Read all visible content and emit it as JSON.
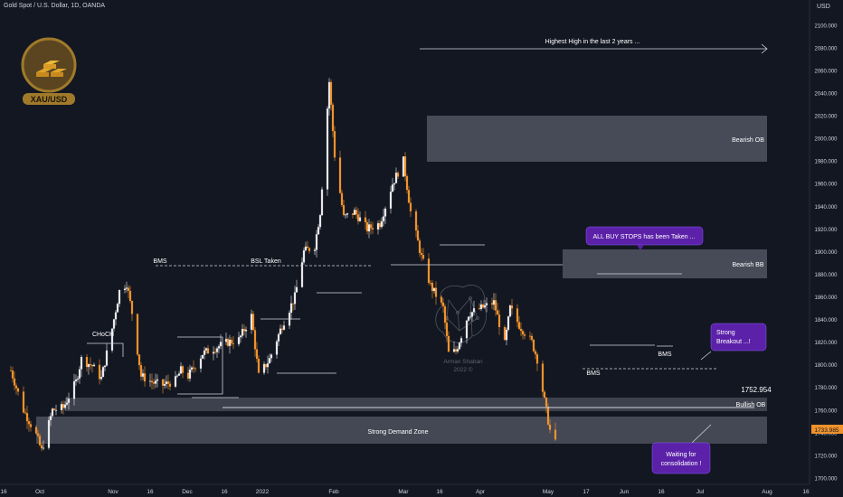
{
  "header": {
    "symbol_title": "Gold Spot / U.S. Dollar, 1D, OANDA",
    "currency": "USD"
  },
  "logo": {
    "label": "XAU/USD",
    "colors": {
      "ring": "#a07a2a",
      "fill": "#5a4520",
      "bars": "#e0a52a"
    }
  },
  "watermark": {
    "line1": "Arman Shaban",
    "line2": "2022 ©"
  },
  "colors": {
    "background": "#131722",
    "bull_candle": "#e8e8ec",
    "bear_candle": "#f0922b",
    "zone": "#5a5e6b",
    "callout": "#5b21a8",
    "price_tag": "#f0922b",
    "text": "#d1d4dc",
    "annotation_text": "#ffffff"
  },
  "chart_data": {
    "type": "candlestick",
    "title": "Gold Spot / U.S. Dollar, 1D, OANDA",
    "ylabel": "USD",
    "ylim": [
      1694,
      2109
    ],
    "x_axis_labels": [
      "16",
      "Oct",
      "Nov",
      "16",
      "Dec",
      "16",
      "2022",
      "Feb",
      "Mar",
      "16",
      "Apr",
      "May",
      "17",
      "Jun",
      "16",
      "Jul",
      "Aug",
      "16"
    ],
    "y_ticks": [
      1700,
      1720,
      1740,
      1760,
      1780,
      1800,
      1820,
      1840,
      1860,
      1880,
      1900,
      1920,
      1940,
      1960,
      1980,
      2000,
      2020,
      2040,
      2060,
      2080,
      2100
    ],
    "y_tick_labels": [
      "1700.000",
      "1720.000",
      "1740.000",
      "1760.000",
      "1780.000",
      "1800.000",
      "1820.000",
      "1840.000",
      "1860.000",
      "1880.000",
      "1900.000",
      "1920.000",
      "1940.000",
      "1960.000",
      "1980.000",
      "2000.000",
      "2020.000",
      "2040.000",
      "2060.000",
      "2080.000",
      "2100.000"
    ],
    "last_price": 1733.985,
    "last_price_label": "1733.985",
    "level_label": "1752.954",
    "price_anchors": [
      [
        "Sep 13",
        1795
      ],
      [
        "Sep 20",
        1760
      ],
      [
        "Sep 27",
        1738
      ],
      [
        "Sep 30",
        1724
      ],
      [
        "Oct 6",
        1760
      ],
      [
        "Oct 12",
        1762
      ],
      [
        "Oct 19",
        1785
      ],
      [
        "Oct 22",
        1805
      ],
      [
        "Oct 28",
        1799
      ],
      [
        "Nov 2",
        1788
      ],
      [
        "Nov 8",
        1832
      ],
      [
        "Nov 12",
        1865
      ],
      [
        "Nov 16",
        1872
      ],
      [
        "Nov 19",
        1846
      ],
      [
        "Nov 24",
        1790
      ],
      [
        "Dec 1",
        1784
      ],
      [
        "Dec 6",
        1782
      ],
      [
        "Dec 13",
        1786
      ],
      [
        "Dec 16",
        1795
      ],
      [
        "Dec 20",
        1790
      ],
      [
        "Dec 28",
        1810
      ],
      [
        "Jan 4",
        1815
      ],
      [
        "Jan 11",
        1820
      ],
      [
        "Jan 17",
        1822
      ],
      [
        "Jan 24",
        1843
      ],
      [
        "Jan 28",
        1790
      ],
      [
        "Feb 3",
        1805
      ],
      [
        "Feb 10",
        1835
      ],
      [
        "Feb 17",
        1860
      ],
      [
        "Feb 22",
        1900
      ],
      [
        "Feb 28",
        1905
      ],
      [
        "Mar 3",
        1935
      ],
      [
        "Mar 8",
        2050
      ],
      [
        "Mar 11",
        1985
      ],
      [
        "Mar 16",
        1930
      ],
      [
        "Mar 22",
        1935
      ],
      [
        "Mar 29",
        1920
      ],
      [
        "Apr 5",
        1925
      ],
      [
        "Apr 12",
        1960
      ],
      [
        "Apr 18",
        1980
      ],
      [
        "Apr 22",
        1935
      ],
      [
        "Apr 28",
        1895
      ],
      [
        "May 3",
        1870
      ],
      [
        "May 10",
        1850
      ],
      [
        "May 13",
        1810
      ],
      [
        "May 17",
        1812
      ],
      [
        "May 24",
        1845
      ],
      [
        "May 31",
        1850
      ],
      [
        "Jun 7",
        1855
      ],
      [
        "Jun 13",
        1818
      ],
      [
        "Jun 16",
        1850
      ],
      [
        "Jun 21",
        1835
      ],
      [
        "Jun 28",
        1820
      ],
      [
        "Jul 1",
        1805
      ],
      [
        "Jul 5",
        1768
      ],
      [
        "Jul 8",
        1742
      ],
      [
        "Jul 11",
        1733.985
      ]
    ]
  },
  "annotations": {
    "highest_high": "Highest High in the last 2 years ...",
    "bearish_ob": "Bearish OB",
    "bearish_bb": "Bearish BB",
    "bullish_ob": "Bullish OB",
    "strong_demand": "Strong Demand Zone",
    "bms_left": "BMS",
    "bsl_taken": "BSL Taken",
    "choch": "CHoCH",
    "bms_right_top": "BMS",
    "bms_right_bottom": "BMS",
    "callout_buy_stops": "ALL BUY STOPS has been Taken ...",
    "callout_breakout_line1": "Strong",
    "callout_breakout_line2": "Breakout ...!",
    "callout_consolidation_line1": "Waiting for",
    "callout_consolidation_line2": "consolidation !"
  }
}
